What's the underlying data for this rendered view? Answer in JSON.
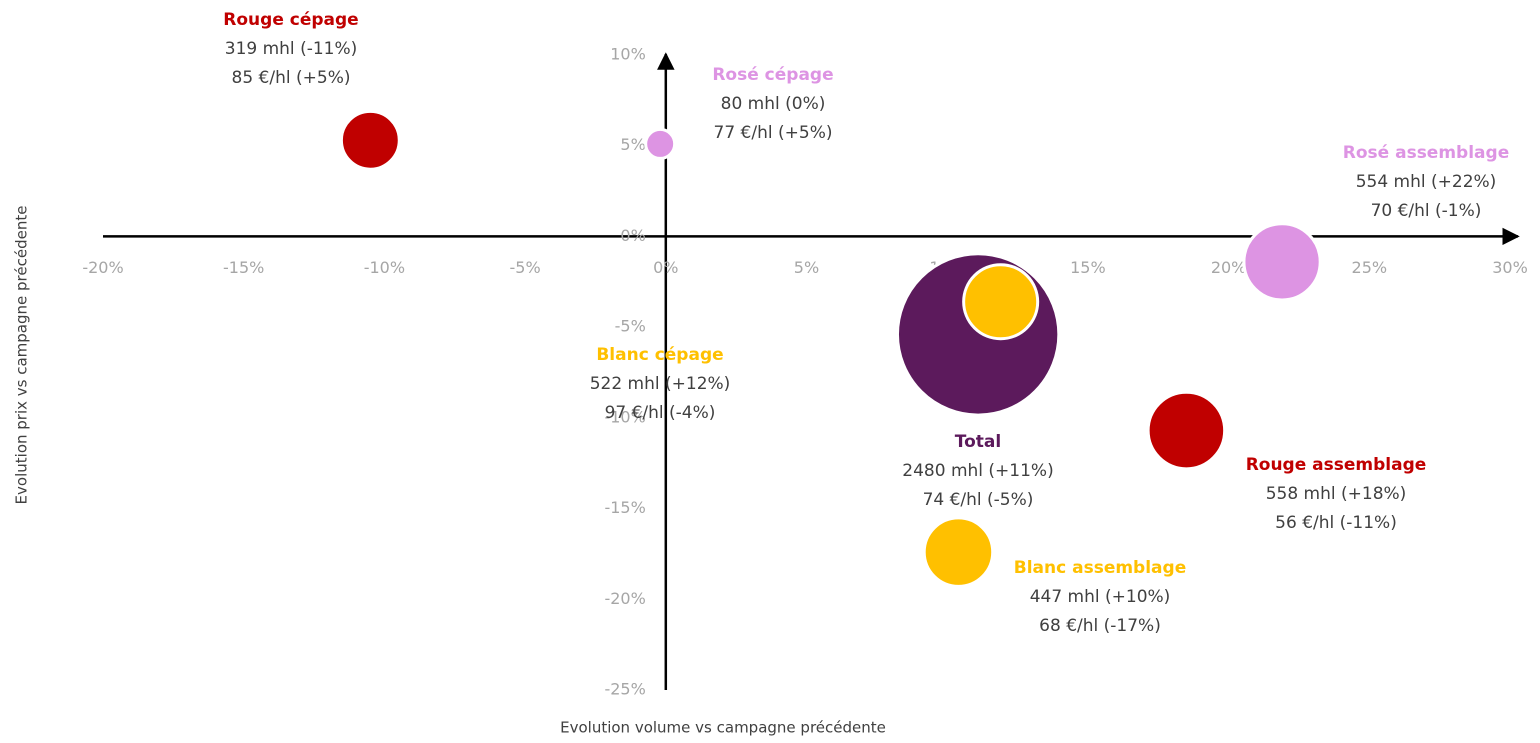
{
  "chart_data": {
    "type": "bubble",
    "xlabel": "Evolution volume vs campagne précédente",
    "ylabel": "Evolution prix vs campagne précédente",
    "xlim": [
      -20,
      30
    ],
    "ylim": [
      -25,
      10
    ],
    "xticks": [
      {
        "value": -20,
        "label": "-20%"
      },
      {
        "value": -15,
        "label": "-15%"
      },
      {
        "value": -10,
        "label": "-10%"
      },
      {
        "value": -5,
        "label": "-5%"
      },
      {
        "value": 0,
        "label": "0%"
      },
      {
        "value": 5,
        "label": "5%"
      },
      {
        "value": 10,
        "label": "10%"
      },
      {
        "value": 15,
        "label": "15%"
      },
      {
        "value": 20,
        "label": "20%"
      },
      {
        "value": 25,
        "label": "25%"
      },
      {
        "value": 30,
        "label": "30%"
      }
    ],
    "yticks": [
      {
        "value": 10,
        "label": "10%"
      },
      {
        "value": 5,
        "label": "5%"
      },
      {
        "value": 0,
        "label": "0%"
      },
      {
        "value": -5,
        "label": "-5%"
      },
      {
        "value": -10,
        "label": "-10%"
      },
      {
        "value": -15,
        "label": "-15%"
      },
      {
        "value": -20,
        "label": "-20%"
      },
      {
        "value": -25,
        "label": "-25%"
      }
    ],
    "series": [
      {
        "name": "Rouge cépage",
        "color": "#c00000",
        "x": -10.5,
        "y": 5.3,
        "size": 319,
        "volume_label": "319 mhl (-11%)",
        "price_label": "85 €/hl (+5%)"
      },
      {
        "name": "Rosé cépage",
        "color": "#dd94e3",
        "x": -0.2,
        "y": 5.1,
        "size": 80,
        "volume_label": "80 mhl (0%)",
        "price_label": "77 €/hl (+5%)"
      },
      {
        "name": "Rosé assemblage",
        "color": "#dd94e3",
        "x": 21.9,
        "y": -1.4,
        "size": 554,
        "volume_label": "554 mhl (+22%)",
        "price_label": "70 €/hl (-1%)"
      },
      {
        "name": "Total",
        "color": "#5c1a5c",
        "x": 11.1,
        "y": -5.4,
        "size": 2480,
        "volume_label": "2480 mhl (+11%)",
        "price_label": "74 €/hl (-5%)"
      },
      {
        "name": "Blanc cépage",
        "color": "#ffc000",
        "x": 11.9,
        "y": -3.6,
        "size": 522,
        "volume_label": "522 mhl (+12%)",
        "price_label": "97 €/hl (-4%)"
      },
      {
        "name": "Rouge assemblage",
        "color": "#c00000",
        "x": 18.5,
        "y": -10.7,
        "size": 558,
        "volume_label": "558 mhl (+18%)",
        "price_label": "56 €/hl (-11%)"
      },
      {
        "name": "Blanc assemblage",
        "color": "#ffc000",
        "x": 10.4,
        "y": -17.4,
        "size": 447,
        "volume_label": "447 mhl (+10%)",
        "price_label": "68 €/hl (-17%)"
      }
    ]
  }
}
